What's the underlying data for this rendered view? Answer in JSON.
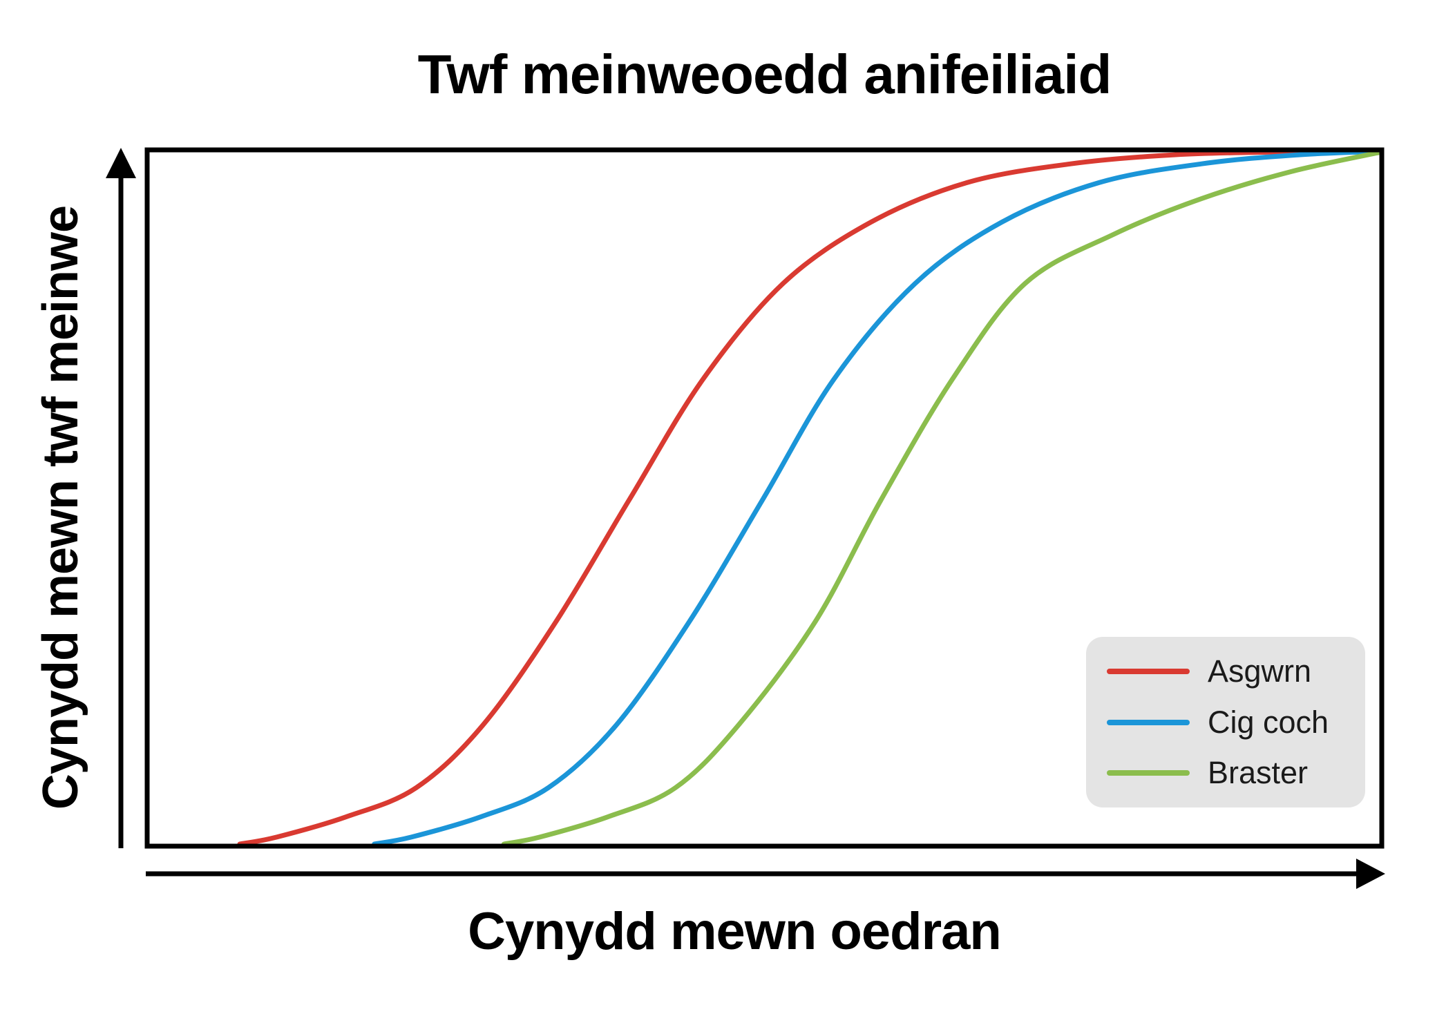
{
  "chart": {
    "title": "Twf meinweoedd anifeiliaid",
    "x_axis_label": "Cynydd mewn oedran",
    "y_axis_label": "Cynydd mewn twf meinwe"
  },
  "legend": {
    "background": "#e4e4e4",
    "position": "inside lower-right"
  },
  "colors": {
    "axis": "#000000",
    "text": "#000000",
    "bone": "#d93a31",
    "red_meat": "#1b95d8",
    "fat": "#8bbd4d"
  },
  "chart_data": {
    "type": "line",
    "title": "Twf meinweoedd anifeiliaid",
    "xlabel": "Cynydd mewn oedran",
    "ylabel": "Cynydd mewn twf meinwe",
    "x_range": [
      0,
      1
    ],
    "y_range": [
      0,
      1
    ],
    "grid": false,
    "ticks": "none - qualitative axes drawn as arrows",
    "legend_position": "inside lower-right",
    "curve_shape": "three horizontally offset sigmoid (S-shaped) growth curves",
    "series": [
      {
        "name": "Asgwrn",
        "color": "#d93a31",
        "points": [
          [
            0.075,
            0.003
          ],
          [
            0.105,
            0.013
          ],
          [
            0.161,
            0.042
          ],
          [
            0.218,
            0.084
          ],
          [
            0.272,
            0.174
          ],
          [
            0.331,
            0.322
          ],
          [
            0.39,
            0.496
          ],
          [
            0.45,
            0.67
          ],
          [
            0.515,
            0.808
          ],
          [
            0.586,
            0.896
          ],
          [
            0.664,
            0.953
          ],
          [
            0.748,
            0.98
          ],
          [
            0.832,
            0.993
          ],
          [
            0.916,
            0.997
          ],
          [
            1.0,
            0.999
          ]
        ]
      },
      {
        "name": "Cig coch",
        "color": "#1b95d8",
        "points": [
          [
            0.184,
            0.003
          ],
          [
            0.214,
            0.013
          ],
          [
            0.27,
            0.042
          ],
          [
            0.325,
            0.084
          ],
          [
            0.38,
            0.174
          ],
          [
            0.439,
            0.322
          ],
          [
            0.498,
            0.496
          ],
          [
            0.556,
            0.67
          ],
          [
            0.622,
            0.808
          ],
          [
            0.692,
            0.896
          ],
          [
            0.771,
            0.953
          ],
          [
            0.854,
            0.98
          ],
          [
            0.933,
            0.993
          ],
          [
            1.0,
            0.998
          ]
        ]
      },
      {
        "name": "Braster",
        "color": "#8bbd4d",
        "points": [
          [
            0.289,
            0.003
          ],
          [
            0.318,
            0.013
          ],
          [
            0.373,
            0.042
          ],
          [
            0.428,
            0.084
          ],
          [
            0.479,
            0.174
          ],
          [
            0.541,
            0.322
          ],
          [
            0.594,
            0.496
          ],
          [
            0.652,
            0.67
          ],
          [
            0.711,
            0.808
          ],
          [
            0.782,
            0.878
          ],
          [
            0.854,
            0.93
          ],
          [
            0.927,
            0.969
          ],
          [
            1.0,
            0.997
          ]
        ]
      }
    ]
  }
}
